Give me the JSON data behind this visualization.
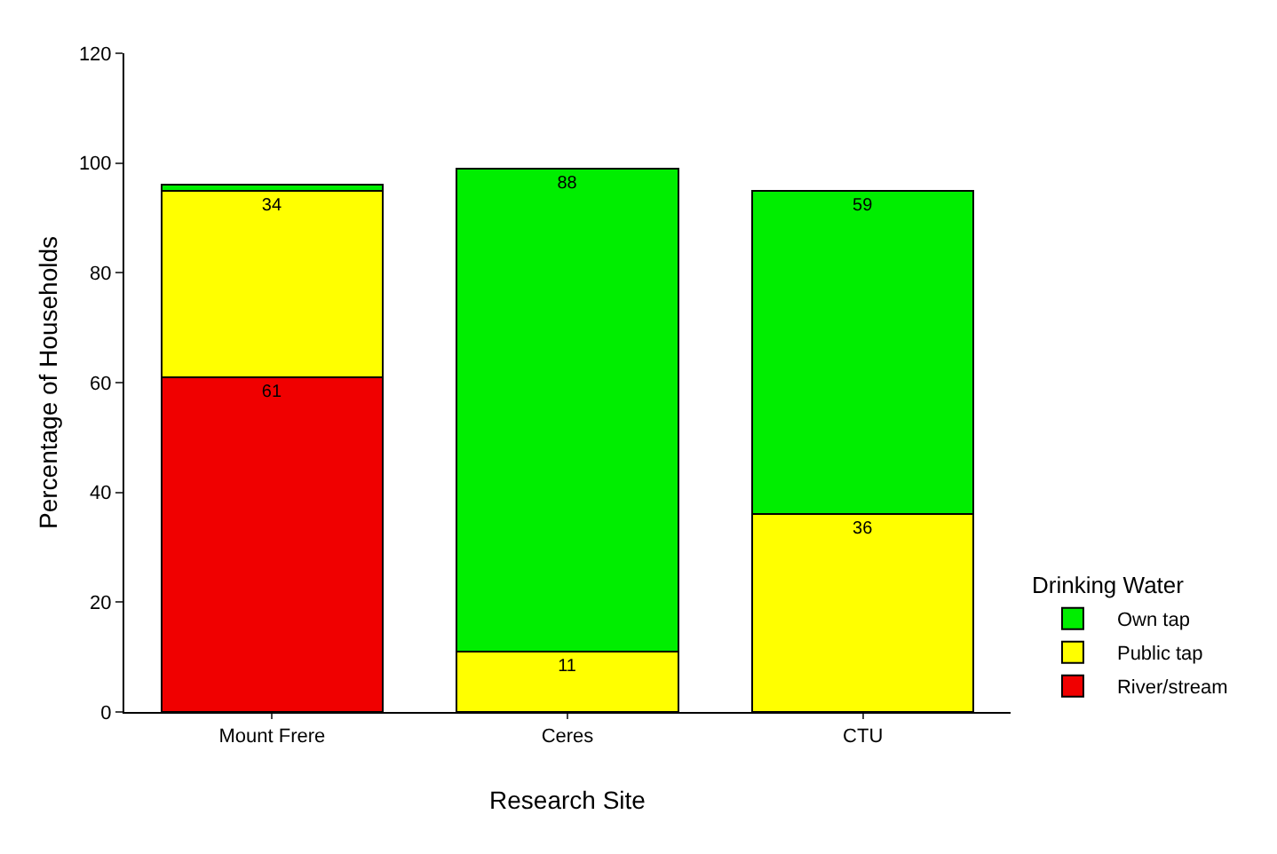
{
  "chart_data": {
    "type": "bar",
    "stacked": true,
    "xlabel": "Research Site",
    "ylabel": "Percentage of Households",
    "legend_title": "Drinking Water",
    "legend": "bottom right",
    "categories": [
      "Mount Frere",
      "Ceres",
      "CTU"
    ],
    "ylim": [
      0,
      120
    ],
    "yticks": [
      0,
      20,
      40,
      60,
      80,
      100,
      120
    ],
    "grid": false,
    "series": [
      {
        "name": "River/stream",
        "color": "#f00000",
        "values": [
          61,
          0,
          0
        ],
        "value_labels": [
          "61",
          null,
          null
        ]
      },
      {
        "name": "Public tap",
        "color": "#ffff00",
        "values": [
          34,
          11,
          36
        ],
        "value_labels": [
          "34",
          "11",
          "36"
        ]
      },
      {
        "name": "Own tap",
        "color": "#00ee00",
        "values": [
          1,
          88,
          59
        ],
        "value_labels": [
          null,
          "88",
          "59"
        ]
      }
    ]
  }
}
